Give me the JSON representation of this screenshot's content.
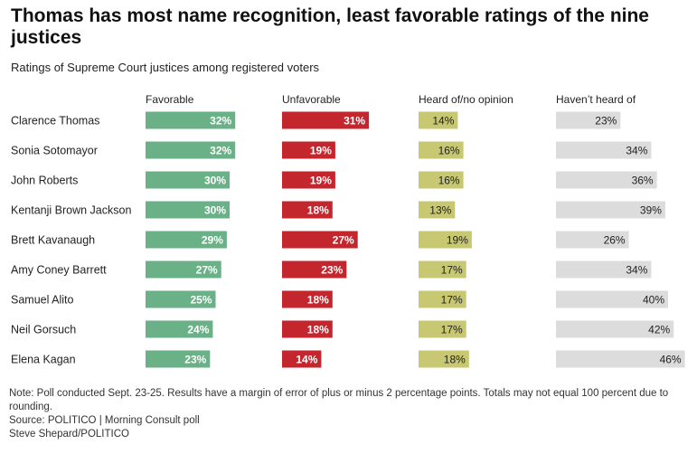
{
  "title": "Thomas has most name recognition, least favorable ratings of the nine justices",
  "subtitle": "Ratings of Supreme Court justices among registered voters",
  "notes": {
    "note": "Note: Poll conducted Sept. 23-25. Results have a margin of error of plus or minus 2 percentage points. Totals may not equal 100 percent due to rounding.",
    "source": "Source: POLITICO | Morning Consult poll",
    "credit": "Steve Shepard/POLITICO"
  },
  "colors": {
    "favorable": "#6ab187",
    "unfavorable": "#c4262e",
    "heard_no_opinion": "#c9c872",
    "havent_heard": "#dcdcdc",
    "label_on_dark": "#ffffff",
    "label_on_light": "#222222"
  },
  "chart_data": {
    "type": "bar",
    "title": "Thomas has most name recognition, least favorable ratings of the nine justices",
    "subtitle": "Ratings of Supreme Court justices among registered voters",
    "categories": [
      "Clarence Thomas",
      "Sonia Sotomayor",
      "John Roberts",
      "Kentanji Brown Jackson",
      "Brett Kavanaugh",
      "Amy Coney Barrett",
      "Samuel Alito",
      "Neil Gorsuch",
      "Elena Kagan"
    ],
    "series": [
      {
        "name": "Favorable",
        "key": "favorable",
        "values": [
          32,
          32,
          30,
          30,
          29,
          27,
          25,
          24,
          23
        ]
      },
      {
        "name": "Unfavorable",
        "key": "unfavorable",
        "values": [
          31,
          19,
          19,
          18,
          27,
          23,
          18,
          18,
          14
        ]
      },
      {
        "name": "Heard of/no opinion",
        "key": "heard_no_opinion",
        "values": [
          14,
          16,
          16,
          13,
          19,
          17,
          17,
          17,
          18
        ]
      },
      {
        "name": "Haven’t heard of",
        "key": "havent_heard",
        "values": [
          23,
          34,
          36,
          39,
          26,
          34,
          40,
          42,
          46
        ]
      }
    ],
    "value_suffix": "%",
    "xlabel": "",
    "ylabel": "",
    "grid": false,
    "legend": "column headers"
  }
}
